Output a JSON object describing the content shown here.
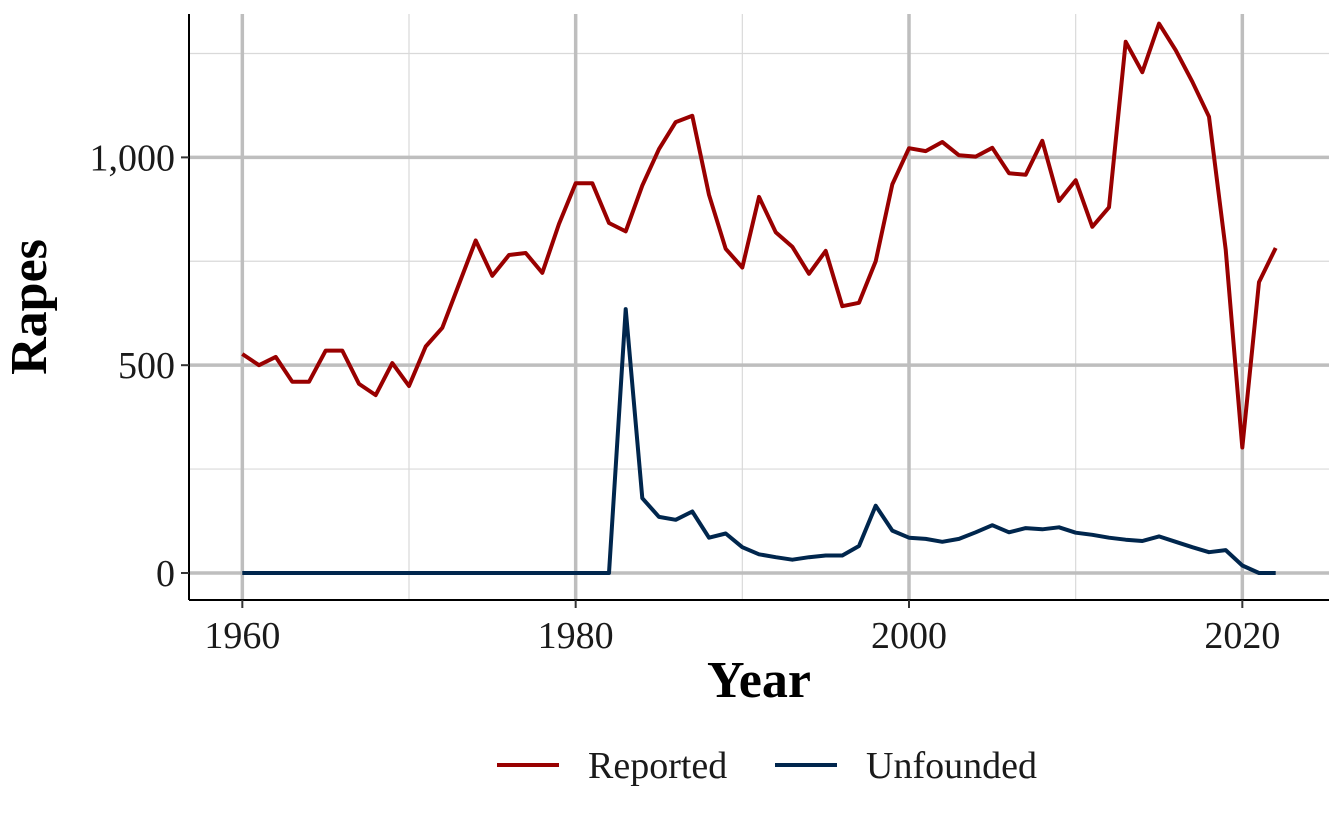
{
  "chart_data": {
    "type": "line",
    "title": "",
    "xlabel": "Year",
    "ylabel": "Rapes",
    "xlim": [
      1956.8,
      2025.2
    ],
    "ylim": [
      -65,
      1345
    ],
    "x_ticks": [
      1960,
      1980,
      2000,
      2020
    ],
    "x_tick_labels": [
      "1960",
      "1980",
      "2000",
      "2020"
    ],
    "y_ticks": [
      0,
      500,
      1000
    ],
    "y_tick_labels": [
      "0",
      "500",
      "1,000"
    ],
    "grid": true,
    "legend_position": "bottom",
    "x": [
      1960,
      1961,
      1962,
      1963,
      1964,
      1965,
      1966,
      1967,
      1968,
      1969,
      1970,
      1971,
      1972,
      1973,
      1974,
      1975,
      1976,
      1977,
      1978,
      1979,
      1980,
      1981,
      1982,
      1983,
      1984,
      1985,
      1986,
      1987,
      1988,
      1989,
      1990,
      1991,
      1992,
      1993,
      1994,
      1995,
      1996,
      1997,
      1998,
      1999,
      2000,
      2001,
      2002,
      2003,
      2004,
      2005,
      2006,
      2007,
      2008,
      2009,
      2010,
      2011,
      2012,
      2013,
      2014,
      2015,
      2016,
      2017,
      2018,
      2019,
      2020,
      2021,
      2022
    ],
    "series": [
      {
        "name": "Reported",
        "color": "#990000",
        "values": [
          527,
          500,
          520,
          460,
          460,
          535,
          535,
          455,
          428,
          505,
          450,
          545,
          590,
          695,
          800,
          715,
          765,
          770,
          722,
          840,
          938,
          938,
          842,
          822,
          932,
          1020,
          1085,
          1100,
          910,
          780,
          735,
          905,
          820,
          785,
          720,
          775,
          642,
          650,
          750,
          935,
          1022,
          1015,
          1037,
          1005,
          1002,
          1023,
          962,
          958,
          1040,
          895,
          945,
          833,
          880,
          1278,
          1205,
          1322,
          1258,
          1182,
          1098,
          778,
          302,
          700,
          782
        ]
      },
      {
        "name": "Unfounded",
        "color": "#00264d",
        "values": [
          0,
          0,
          0,
          0,
          0,
          0,
          0,
          0,
          0,
          0,
          0,
          0,
          0,
          0,
          0,
          0,
          0,
          0,
          0,
          0,
          0,
          0,
          0,
          635,
          180,
          135,
          128,
          148,
          85,
          95,
          62,
          45,
          38,
          32,
          38,
          42,
          42,
          65,
          162,
          102,
          85,
          82,
          75,
          82,
          98,
          115,
          98,
          108,
          105,
          110,
          97,
          92,
          85,
          80,
          77,
          88,
          75,
          62,
          50,
          55,
          18,
          0,
          0
        ]
      }
    ]
  }
}
